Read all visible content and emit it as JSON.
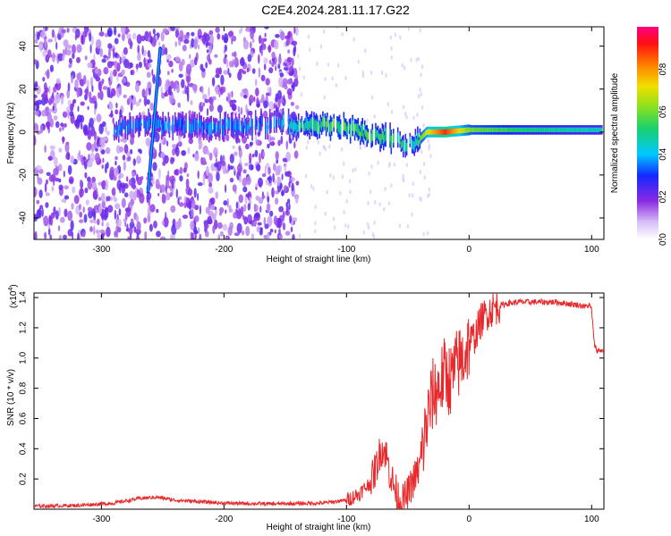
{
  "title": "C2E4.2024.281.11.17.G22",
  "colors": {
    "snr_line": "#e8282b",
    "frame": "#000000"
  },
  "chart_data": [
    {
      "type": "heatmap",
      "xlabel": "Height of straight line (km)",
      "ylabel": "Frequency (Hz)",
      "xlim": [
        -355,
        110
      ],
      "ylim": [
        -50,
        49
      ],
      "xticks": [
        -300,
        -200,
        -100,
        0,
        100
      ],
      "yticks": [
        -40,
        -20,
        0,
        20,
        40
      ],
      "colorbar": {
        "label": "Normalized spectral amplitude",
        "range": [
          0,
          1
        ],
        "ticks": [
          0.0,
          0.2,
          0.4,
          0.6,
          0.8
        ],
        "tick_labels": [
          "0.0",
          "0.2",
          "0.4",
          "0.6",
          "0.8"
        ],
        "colormap": "rainbow (white-purple-blue-cyan-green-yellow-red-magenta)"
      },
      "features": {
        "main_band": [
          {
            "x": -290,
            "f": 2,
            "amp": 0.35
          },
          {
            "x": -270,
            "f": 3,
            "amp": 0.35
          },
          {
            "x": -230,
            "f": 3,
            "amp": 0.35
          },
          {
            "x": -200,
            "f": 2,
            "amp": 0.35
          },
          {
            "x": -160,
            "f": 4,
            "amp": 0.35
          },
          {
            "x": -140,
            "f": 3,
            "amp": 0.45
          },
          {
            "x": -120,
            "f": 3,
            "amp": 0.55
          },
          {
            "x": -100,
            "f": 2,
            "amp": 0.55
          },
          {
            "x": -80,
            "f": -2,
            "amp": 0.55
          },
          {
            "x": -60,
            "f": -4,
            "amp": 0.5
          },
          {
            "x": -45,
            "f": -6,
            "amp": 0.45
          },
          {
            "x": -35,
            "f": 0,
            "amp": 0.7
          },
          {
            "x": -20,
            "f": 0,
            "amp": 0.9
          },
          {
            "x": 0,
            "f": 1,
            "amp": 0.6
          },
          {
            "x": 50,
            "f": 1,
            "amp": 0.5
          },
          {
            "x": 108,
            "f": 1,
            "amp": 0.45
          }
        ],
        "diagonal_streak": {
          "x_start": -262,
          "f_start": -28,
          "x_end": -252,
          "f_end": 39
        },
        "noise_region_x": [
          -355,
          -140
        ]
      }
    },
    {
      "type": "line",
      "xlabel": "Height of straight line (km)",
      "ylabel": "SNR (10 * v/v)",
      "yscale_label": "(x10",
      "yscale_exp": "4",
      "xlim": [
        -355,
        110
      ],
      "ylim": [
        0,
        1.43
      ],
      "xticks": [
        -300,
        -200,
        -100,
        0,
        100
      ],
      "yticks": [
        0.2,
        0.4,
        0.6,
        0.8,
        1.0,
        1.2,
        1.4
      ],
      "ytick_labels": [
        "0.2",
        "0.4",
        "0.6",
        "0.8",
        "1.0",
        "1.2",
        "1.4"
      ],
      "series": [
        {
          "x": [
            -355,
            -320,
            -290,
            -270,
            -255,
            -240,
            -200,
            -160,
            -120,
            -100,
            -90,
            -80,
            -75,
            -72,
            -68,
            -65,
            -60,
            -55,
            -50,
            -45,
            -40,
            -35,
            -30,
            -25,
            -20,
            -15,
            -10,
            -5,
            0,
            5,
            10,
            15,
            20,
            30,
            40,
            50,
            60,
            70,
            80,
            90,
            95,
            98,
            100,
            102,
            104,
            110
          ],
          "y": [
            0.02,
            0.025,
            0.04,
            0.07,
            0.08,
            0.06,
            0.04,
            0.035,
            0.04,
            0.06,
            0.1,
            0.18,
            0.3,
            0.4,
            0.38,
            0.25,
            0.12,
            0.04,
            0.1,
            0.2,
            0.28,
            0.55,
            0.75,
            0.8,
            0.9,
            0.85,
            0.95,
            1.0,
            1.1,
            1.15,
            1.25,
            1.3,
            1.33,
            1.36,
            1.37,
            1.37,
            1.37,
            1.37,
            1.36,
            1.35,
            1.34,
            1.35,
            1.32,
            1.1,
            1.05,
            1.05
          ]
        }
      ]
    }
  ]
}
